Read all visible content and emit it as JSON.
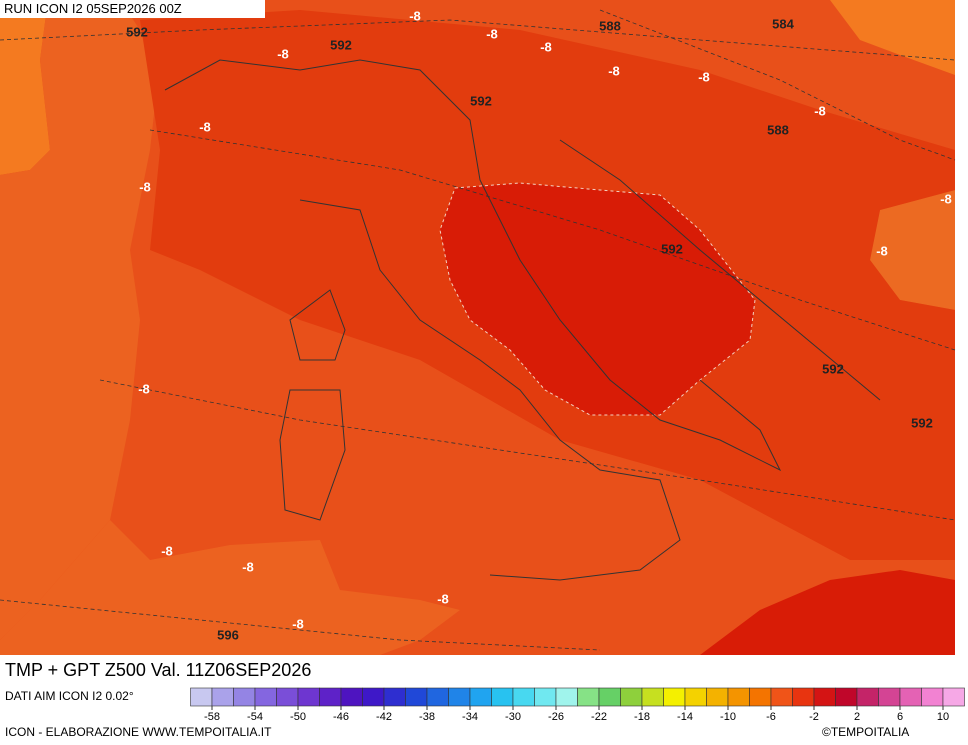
{
  "header": {
    "run": "RUN ICON I2 05SEP2026 00Z"
  },
  "title": "TMP + GPT Z500 Val. 11Z06SEP2026",
  "source": "DATI AIM ICON I2 0.02°",
  "credit": "ICON - ELABORAZIONE WWW.TEMPOITALIA.IT",
  "copyright": "©TEMPOITALIA",
  "contour_labels": [
    "592",
    "-8",
    "588",
    "584",
    "592",
    "-8",
    "-8",
    "-8",
    "-8",
    "-8",
    "592",
    "-8",
    "588",
    "-8",
    "-8",
    "-8",
    "592",
    "-8",
    "592",
    "-8",
    "592",
    "-8",
    "-8",
    "-8",
    "-8",
    "596"
  ],
  "legend": {
    "ticks": [
      -58,
      -54,
      -50,
      -46,
      -42,
      -38,
      -34,
      -30,
      -26,
      -22,
      -18,
      -14,
      -10,
      -6,
      -2,
      2,
      6,
      10
    ],
    "colors": [
      "#c8c8f0",
      "#aaa2ea",
      "#9484e4",
      "#8466e0",
      "#7a4ed8",
      "#6e36d0",
      "#5e22c8",
      "#4e14c0",
      "#3e18c8",
      "#2e2ed0",
      "#2048d8",
      "#2066e0",
      "#2084e8",
      "#20a4f0",
      "#28c2f0",
      "#48d8f0",
      "#70e8f0",
      "#a0f4ec",
      "#86e286",
      "#66d066",
      "#8ed03c",
      "#c6e020",
      "#f4f000",
      "#f4d200",
      "#f4b200",
      "#f49400",
      "#f47400",
      "#f05418",
      "#e83410",
      "#d41414",
      "#c0062a",
      "#c42468",
      "#d44494",
      "#e462b4",
      "#f282d2",
      "#f6a8e6"
    ]
  }
}
